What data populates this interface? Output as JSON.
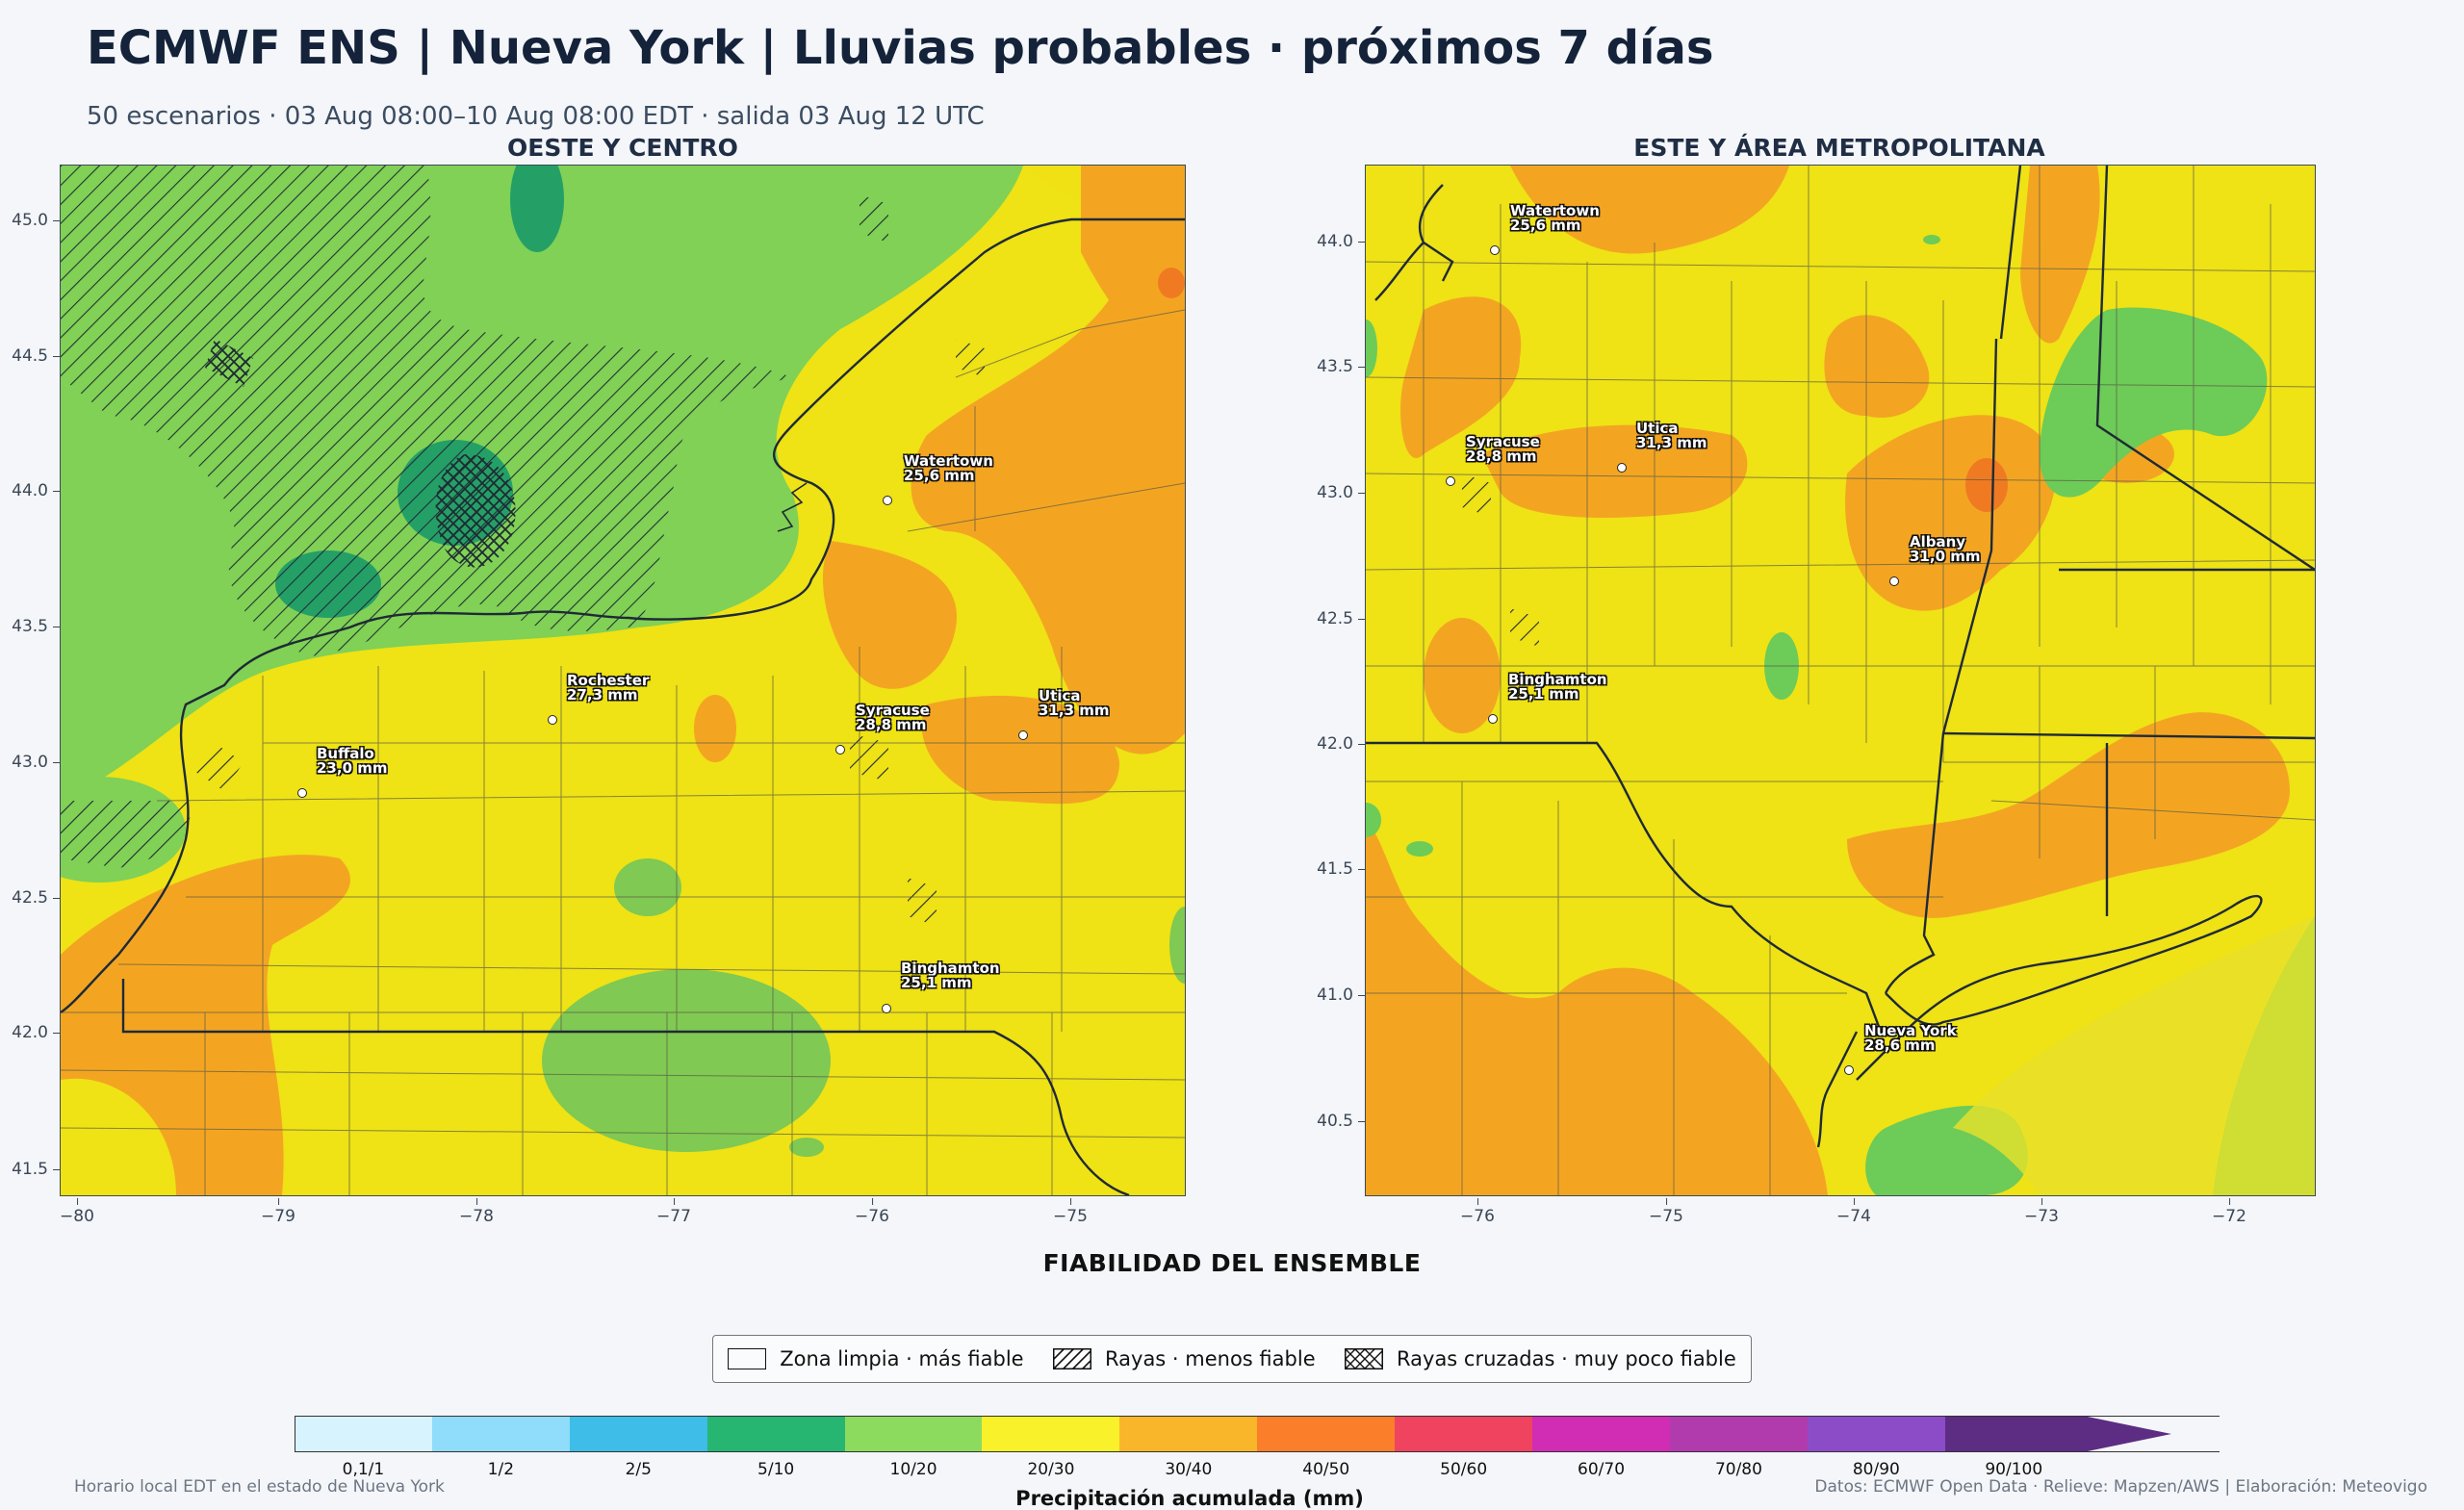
{
  "header": {
    "title": "ECMWF ENS | Nueva York | Lluvias probables · próximos 7 días",
    "subtitle": "50 escenarios · 03 Aug 08:00–10 Aug 08:00 EDT · salida 03 Aug 12 UTC"
  },
  "panels": {
    "west": {
      "title": "OESTE Y CENTRO",
      "yticks": [
        "45.0",
        "44.5",
        "44.0",
        "43.5",
        "43.0",
        "42.5",
        "42.0",
        "41.5"
      ],
      "xticks": [
        "−80",
        "−79",
        "−78",
        "−77",
        "−76",
        "−75"
      ],
      "cities": [
        {
          "name": "Watertown",
          "value": "25,6 mm"
        },
        {
          "name": "Rochester",
          "value": "27,3 mm"
        },
        {
          "name": "Buffalo",
          "value": "23,0 mm"
        },
        {
          "name": "Syracuse",
          "value": "28,8 mm"
        },
        {
          "name": "Utica",
          "value": "31,3 mm"
        },
        {
          "name": "Binghamton",
          "value": "25,1 mm"
        }
      ]
    },
    "east": {
      "title": "ESTE Y ÁREA METROPOLITANA",
      "yticks": [
        "44.0",
        "43.5",
        "43.0",
        "42.5",
        "42.0",
        "41.5",
        "41.0",
        "40.5"
      ],
      "xticks": [
        "−76",
        "−75",
        "−74",
        "−73",
        "−72"
      ],
      "cities": [
        {
          "name": "Watertown",
          "value": "25,6 mm"
        },
        {
          "name": "Syracuse",
          "value": "28,8 mm"
        },
        {
          "name": "Utica",
          "value": "31,3 mm"
        },
        {
          "name": "Albany",
          "value": "31,0 mm"
        },
        {
          "name": "Binghamton",
          "value": "25,1 mm"
        },
        {
          "name": "Nueva York",
          "value": "28,6 mm"
        }
      ]
    }
  },
  "reliability": {
    "heading": "FIABILIDAD DEL ENSEMBLE",
    "items": [
      {
        "label": "Zona limpia · más fiable",
        "pattern": "none"
      },
      {
        "label": "Rayas · menos fiable",
        "pattern": "hatch"
      },
      {
        "label": "Rayas cruzadas · muy poco fiable",
        "pattern": "crosshatch"
      }
    ]
  },
  "colorbar": {
    "title": "Precipitación acumulada (mm)",
    "labels": [
      "0,1/1",
      "1/2",
      "2/5",
      "5/10",
      "10/20",
      "20/30",
      "30/40",
      "40/50",
      "50/60",
      "60/70",
      "70/80",
      "80/90",
      "90/100"
    ],
    "colors": [
      "#d7f3fd",
      "#8fdcfb",
      "#3dbde8",
      "#27b572",
      "#8ddb5e",
      "#f9f129",
      "#fab62a",
      "#fb7f2b",
      "#ef4360",
      "#d02cb4",
      "#b13bad",
      "#8d4cc7",
      "#5c2d83"
    ],
    "extend": "max"
  },
  "footer": {
    "left": "Horario local EDT en el estado de Nueva York",
    "right": "Datos: ECMWF Open Data · Relieve: Mapzen/AWS | Elaboración: Meteovigo"
  },
  "colors": {
    "green": "#7fd35a",
    "darkgreen": "#27a66a",
    "yellow": "#f2e314",
    "orange": "#f3a522",
    "deeporange": "#f07a22",
    "boundary": "#2b3440"
  }
}
